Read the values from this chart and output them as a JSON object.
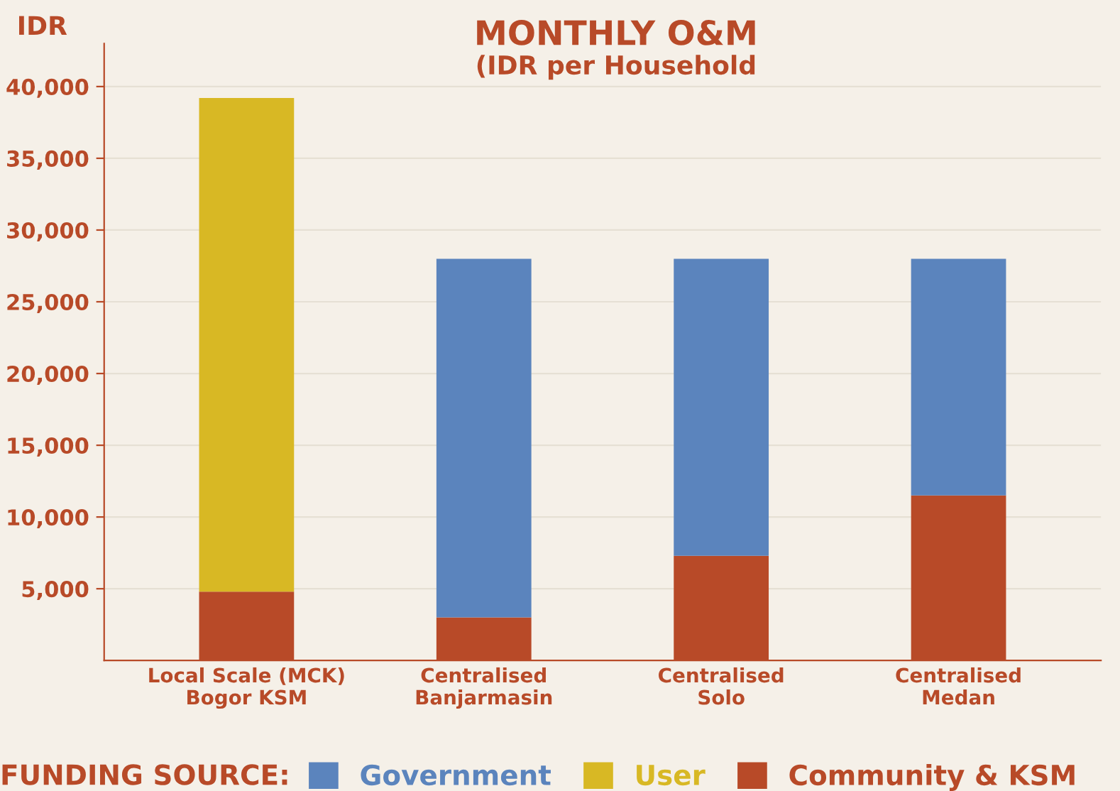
{
  "chart_data": {
    "type": "bar",
    "stacked": true,
    "title": "MONTHLY O&M",
    "subtitle": "(IDR per Household",
    "ylabel": "IDR",
    "categories": [
      "Local Scale (MCK)\nBogor KSM",
      "Centralised\nBanjarmasin",
      "Centralised\nSolo",
      "Centralised\nMedan"
    ],
    "series": [
      {
        "name": "Community & KSM",
        "color": "#b84a28",
        "values": [
          4800,
          3000,
          7300,
          11500
        ]
      },
      {
        "name": "Government",
        "color": "#5b84bd",
        "values": [
          null,
          25000,
          20700,
          16500
        ]
      },
      {
        "name": "User",
        "color": "#d8b824",
        "values": [
          34400,
          null,
          null,
          null
        ]
      }
    ],
    "ylim": [
      0,
      43000
    ],
    "yticks": [
      {
        "value": 5000,
        "label": "5,000"
      },
      {
        "value": 10000,
        "label": "10,000"
      },
      {
        "value": 15000,
        "label": "15,000"
      },
      {
        "value": 20000,
        "label": "20,000"
      },
      {
        "value": 25000,
        "label": "25,000"
      },
      {
        "value": 30000,
        "label": "30,000"
      },
      {
        "value": 35000,
        "label": "35,000"
      },
      {
        "value": 40000,
        "label": "40,000"
      }
    ],
    "grid": "y",
    "legend": "bottom",
    "legend_title": "FUNDING SOURCE:"
  }
}
